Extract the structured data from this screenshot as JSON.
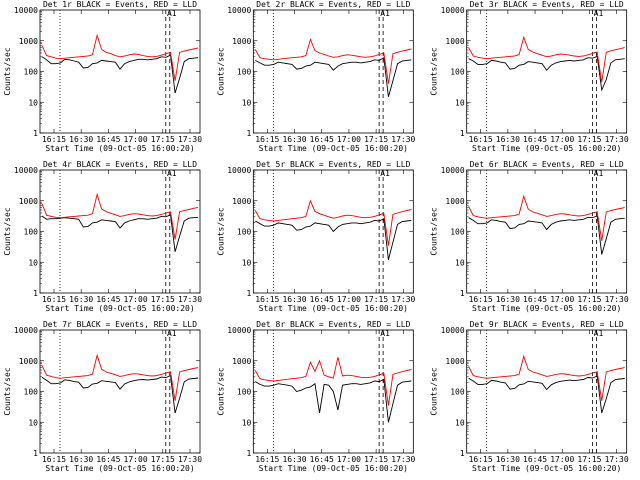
{
  "chart_data": [
    {
      "type": "line",
      "title": "Det 1r BLACK = Events, RED = LLD",
      "ylabel": "Counts/sec",
      "xlabel": "Start Time (09-Oct-05 16:00:20)",
      "xticks": [
        "16:15",
        "16:30",
        "16:45",
        "17:00",
        "17:15",
        "17:30"
      ],
      "yticks": [
        "1",
        "10",
        "100",
        "1000",
        "10000"
      ],
      "ylim": [
        1,
        10000
      ],
      "yscale": "log",
      "annotation": "A1",
      "series": [
        {
          "name": "Events",
          "color": "#000000",
          "values": [
            300,
            240,
            180,
            180,
            190,
            250,
            240,
            220,
            200,
            130,
            135,
            180,
            190,
            230,
            220,
            210,
            200,
            120,
            180,
            210,
            230,
            250,
            250,
            240,
            250,
            260,
            300,
            290,
            340,
            20,
            60,
            210,
            260,
            270,
            280
          ]
        },
        {
          "name": "LLD",
          "color": "#ff0000",
          "values": [
            700,
            330,
            300,
            270,
            260,
            270,
            280,
            290,
            300,
            310,
            320,
            350,
            1500,
            520,
            420,
            380,
            330,
            300,
            320,
            350,
            370,
            360,
            330,
            310,
            300,
            310,
            340,
            380,
            420,
            50,
            420,
            460,
            500,
            540,
            580
          ]
        }
      ]
    },
    {
      "type": "line",
      "title": "Det 2r BLACK = Events, RED = LLD",
      "ylabel": "Counts/sec",
      "xlabel": "Start Time (09-Oct-05 16:00:20)",
      "xticks": [
        "16:15",
        "16:30",
        "16:45",
        "17:00",
        "17:15",
        "17:30"
      ],
      "yticks": [
        "1",
        "10",
        "100",
        "1000",
        "10000"
      ],
      "ylim": [
        1,
        10000
      ],
      "yscale": "log",
      "annotation": "A1",
      "series": [
        {
          "name": "Events",
          "color": "#000000",
          "values": [
            230,
            190,
            160,
            160,
            170,
            200,
            190,
            180,
            170,
            120,
            125,
            150,
            160,
            200,
            190,
            180,
            170,
            110,
            150,
            180,
            190,
            200,
            200,
            190,
            200,
            210,
            240,
            230,
            280,
            15,
            50,
            180,
            220,
            230,
            240
          ]
        },
        {
          "name": "LLD",
          "color": "#ff0000",
          "values": [
            520,
            280,
            260,
            250,
            240,
            250,
            260,
            270,
            280,
            290,
            300,
            330,
            1100,
            480,
            400,
            360,
            320,
            290,
            300,
            330,
            350,
            340,
            320,
            300,
            290,
            300,
            320,
            360,
            400,
            40,
            380,
            420,
            460,
            500,
            540
          ]
        }
      ]
    },
    {
      "type": "line",
      "title": "Det 3r BLACK = Events, RED = LLD",
      "ylabel": "Counts/sec",
      "xlabel": "Start Time (09-Oct-05 16:00:20)",
      "xticks": [
        "16:15",
        "16:30",
        "16:45",
        "17:00",
        "17:15",
        "17:30"
      ],
      "yticks": [
        "1",
        "10",
        "100",
        "1000",
        "10000"
      ],
      "ylim": [
        1,
        10000
      ],
      "yscale": "log",
      "annotation": "A1",
      "series": [
        {
          "name": "Events",
          "color": "#000000",
          "values": [
            260,
            220,
            170,
            170,
            180,
            230,
            220,
            200,
            190,
            120,
            125,
            160,
            170,
            210,
            200,
            190,
            180,
            110,
            160,
            190,
            210,
            220,
            230,
            220,
            230,
            240,
            280,
            270,
            310,
            25,
            55,
            190,
            240,
            250,
            260
          ]
        },
        {
          "name": "LLD",
          "color": "#ff0000",
          "values": [
            600,
            320,
            290,
            270,
            260,
            270,
            280,
            290,
            300,
            310,
            320,
            360,
            1300,
            520,
            430,
            380,
            340,
            300,
            320,
            350,
            370,
            360,
            340,
            320,
            310,
            320,
            350,
            390,
            430,
            45,
            420,
            470,
            510,
            550,
            600
          ]
        }
      ]
    },
    {
      "type": "line",
      "title": "Det 4r BLACK = Events, RED = LLD",
      "ylabel": "Counts/sec",
      "xlabel": "Start Time (09-Oct-05 16:00:20)",
      "xticks": [
        "16:15",
        "16:30",
        "16:45",
        "17:00",
        "17:15",
        "17:30"
      ],
      "yticks": [
        "1",
        "10",
        "100",
        "1000",
        "10000"
      ],
      "ylim": [
        1,
        10000
      ],
      "yscale": "log",
      "annotation": "A1",
      "series": [
        {
          "name": "Events",
          "color": "#000000",
          "values": [
            320,
            250,
            260,
            260,
            270,
            280,
            270,
            260,
            250,
            140,
            145,
            190,
            200,
            240,
            230,
            220,
            210,
            130,
            190,
            220,
            240,
            260,
            260,
            250,
            260,
            270,
            310,
            300,
            350,
            22,
            70,
            220,
            270,
            280,
            290
          ]
        },
        {
          "name": "LLD",
          "color": "#ff0000",
          "values": [
            800,
            340,
            310,
            290,
            280,
            290,
            300,
            310,
            320,
            330,
            340,
            380,
            1600,
            540,
            440,
            390,
            350,
            310,
            330,
            360,
            380,
            370,
            350,
            330,
            320,
            330,
            360,
            400,
            440,
            55,
            440,
            480,
            520,
            570,
            610
          ]
        }
      ]
    },
    {
      "type": "line",
      "title": "Det 5r BLACK = Events, RED = LLD",
      "ylabel": "Counts/sec",
      "xlabel": "Start Time (09-Oct-05 16:00:20)",
      "xticks": [
        "16:15",
        "16:30",
        "16:45",
        "17:00",
        "17:15",
        "17:30"
      ],
      "yticks": [
        "1",
        "10",
        "100",
        "1000",
        "10000"
      ],
      "ylim": [
        1,
        10000
      ],
      "yscale": "log",
      "annotation": "A1",
      "series": [
        {
          "name": "Events",
          "color": "#000000",
          "values": [
            220,
            180,
            150,
            150,
            160,
            190,
            180,
            170,
            160,
            110,
            115,
            140,
            150,
            190,
            180,
            170,
            160,
            100,
            140,
            170,
            180,
            190,
            190,
            180,
            190,
            200,
            230,
            220,
            260,
            12,
            45,
            170,
            210,
            220,
            230
          ]
        },
        {
          "name": "LLD",
          "color": "#ff0000",
          "values": [
            480,
            260,
            240,
            230,
            220,
            230,
            240,
            250,
            260,
            270,
            280,
            310,
            1000,
            450,
            380,
            340,
            300,
            270,
            290,
            320,
            340,
            330,
            310,
            290,
            280,
            290,
            310,
            350,
            390,
            35,
            360,
            400,
            440,
            480,
            520
          ]
        }
      ]
    },
    {
      "type": "line",
      "title": "Det 6r BLACK = Events, RED = LLD",
      "ylabel": "Counts/sec",
      "xlabel": "Start Time (09-Oct-05 16:00:20)",
      "xticks": [
        "16:15",
        "16:30",
        "16:45",
        "17:00",
        "17:15",
        "17:30"
      ],
      "yticks": [
        "1",
        "10",
        "100",
        "1000",
        "10000"
      ],
      "ylim": [
        1,
        10000
      ],
      "yscale": "log",
      "annotation": "A1",
      "series": [
        {
          "name": "Events",
          "color": "#000000",
          "values": [
            280,
            230,
            180,
            180,
            190,
            240,
            230,
            210,
            200,
            125,
            130,
            170,
            180,
            220,
            210,
            200,
            190,
            115,
            170,
            200,
            220,
            230,
            240,
            230,
            240,
            250,
            290,
            280,
            320,
            18,
            58,
            200,
            250,
            260,
            270
          ]
        },
        {
          "name": "LLD",
          "color": "#ff0000",
          "values": [
            650,
            330,
            300,
            280,
            270,
            280,
            290,
            300,
            310,
            320,
            330,
            370,
            1400,
            530,
            430,
            390,
            350,
            310,
            330,
            360,
            380,
            370,
            350,
            330,
            320,
            330,
            360,
            400,
            440,
            50,
            430,
            480,
            520,
            560,
            600
          ]
        }
      ]
    },
    {
      "type": "line",
      "title": "Det 7r BLACK = Events, RED = LLD",
      "ylabel": "Counts/sec",
      "xlabel": "Start Time (09-Oct-05 16:00:20)",
      "xticks": [
        "16:15",
        "16:30",
        "16:45",
        "17:00",
        "17:15",
        "17:30"
      ],
      "yticks": [
        "1",
        "10",
        "100",
        "1000",
        "10000"
      ],
      "ylim": [
        1,
        10000
      ],
      "yscale": "log",
      "annotation": "A1",
      "series": [
        {
          "name": "Events",
          "color": "#000000",
          "values": [
            290,
            230,
            180,
            180,
            190,
            240,
            230,
            210,
            200,
            130,
            135,
            175,
            185,
            225,
            215,
            205,
            195,
            120,
            175,
            205,
            225,
            240,
            245,
            235,
            245,
            255,
            295,
            285,
            330,
            20,
            60,
            205,
            255,
            265,
            275
          ]
        },
        {
          "name": "LLD",
          "color": "#ff0000",
          "values": [
            700,
            340,
            310,
            280,
            270,
            280,
            290,
            300,
            310,
            320,
            330,
            370,
            1500,
            530,
            430,
            390,
            350,
            310,
            330,
            360,
            380,
            370,
            350,
            330,
            320,
            330,
            360,
            400,
            440,
            50,
            430,
            480,
            520,
            560,
            600
          ]
        }
      ]
    },
    {
      "type": "line",
      "title": "Det 8r BLACK = Events, RED = LLD",
      "ylabel": "Counts/sec",
      "xlabel": "Start Time (09-Oct-05 16:00:20)",
      "xticks": [
        "16:15",
        "16:30",
        "16:45",
        "17:00",
        "17:15",
        "17:30"
      ],
      "yticks": [
        "1",
        "10",
        "100",
        "1000",
        "10000"
      ],
      "ylim": [
        1,
        10000
      ],
      "yscale": "log",
      "annotation": "A1",
      "series": [
        {
          "name": "Events",
          "color": "#000000",
          "values": [
            210,
            170,
            150,
            150,
            160,
            180,
            170,
            160,
            150,
            100,
            110,
            130,
            140,
            180,
            20,
            170,
            160,
            100,
            25,
            160,
            170,
            180,
            180,
            170,
            180,
            190,
            220,
            210,
            250,
            10,
            40,
            160,
            200,
            210,
            220
          ]
        },
        {
          "name": "LLD",
          "color": "#ff0000",
          "values": [
            480,
            260,
            240,
            230,
            220,
            230,
            240,
            250,
            260,
            270,
            280,
            310,
            900,
            450,
            1000,
            340,
            300,
            270,
            1300,
            320,
            340,
            330,
            310,
            290,
            280,
            290,
            310,
            350,
            390,
            35,
            360,
            400,
            440,
            480,
            520
          ]
        }
      ]
    },
    {
      "type": "line",
      "title": "Det 9r BLACK = Events, RED = LLD",
      "ylabel": "Counts/sec",
      "xlabel": "Start Time (09-Oct-05 16:00:20)",
      "xticks": [
        "16:15",
        "16:30",
        "16:45",
        "17:00",
        "17:15",
        "17:30"
      ],
      "yticks": [
        "1",
        "10",
        "100",
        "1000",
        "10000"
      ],
      "ylim": [
        1,
        10000
      ],
      "yscale": "log",
      "annotation": "A1",
      "series": [
        {
          "name": "Events",
          "color": "#000000",
          "values": [
            270,
            220,
            170,
            170,
            180,
            230,
            220,
            200,
            190,
            120,
            125,
            165,
            175,
            215,
            205,
            195,
            185,
            115,
            165,
            195,
            215,
            225,
            235,
            225,
            235,
            245,
            285,
            275,
            320,
            20,
            58,
            195,
            245,
            255,
            265
          ]
        },
        {
          "name": "LLD",
          "color": "#ff0000",
          "values": [
            650,
            330,
            300,
            280,
            270,
            280,
            290,
            300,
            310,
            320,
            330,
            370,
            1400,
            520,
            430,
            390,
            350,
            310,
            330,
            360,
            380,
            370,
            350,
            330,
            320,
            330,
            360,
            400,
            440,
            50,
            430,
            480,
            520,
            560,
            600
          ]
        }
      ]
    }
  ]
}
